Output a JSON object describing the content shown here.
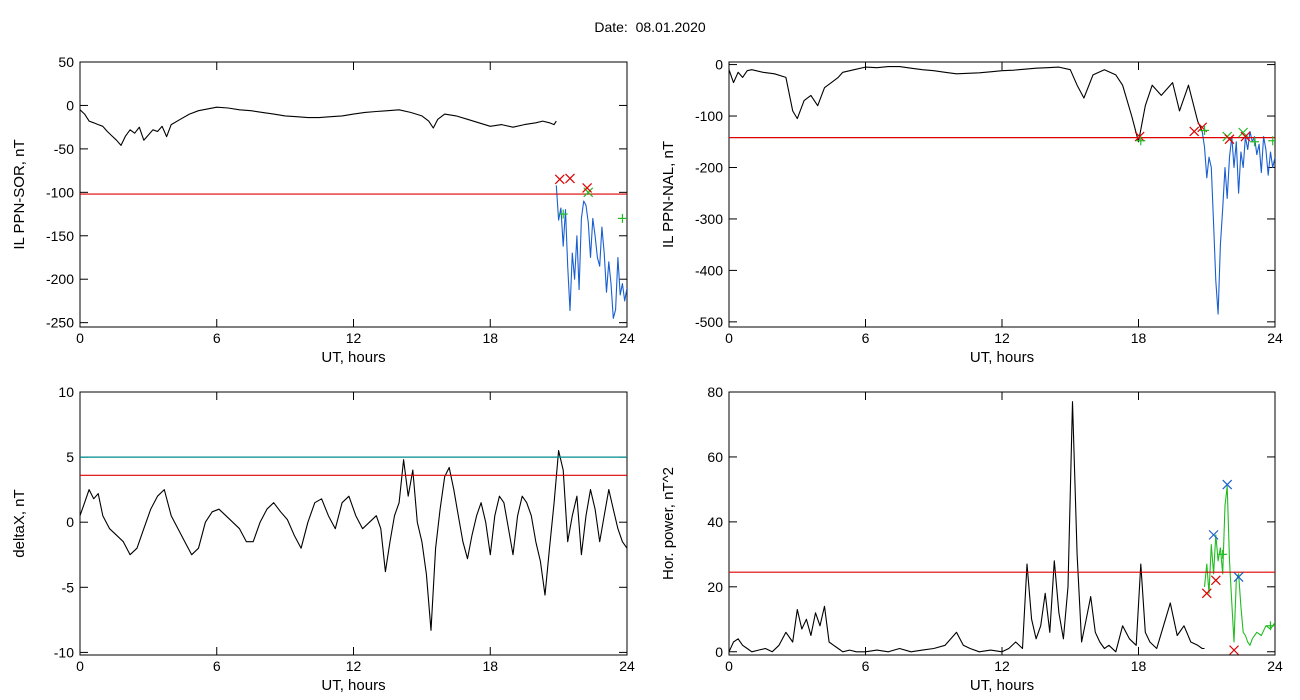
{
  "title_label": "Date:",
  "title_date": "08.01.2020",
  "colors": {
    "data": "#000000",
    "threshold_red": "#dd0000",
    "threshold_teal": "#008b8b",
    "event_blue": "#1a5fd0",
    "marker_red": "#dd0000",
    "marker_green": "#22bb22",
    "marker_blue": "#1a5fd0"
  },
  "chart_data": [
    {
      "type": "line",
      "xlabel": "UT, hours",
      "ylabel": "IL PPN-SOR, nT",
      "xlim": [
        0,
        24
      ],
      "ylim": [
        -255,
        50
      ],
      "xticks": [
        0,
        6,
        12,
        18,
        24
      ],
      "yticks": [
        50,
        0,
        -50,
        -100,
        -150,
        -200,
        -250
      ],
      "thresholds": [
        {
          "value": -102,
          "color": "red"
        }
      ],
      "series": [
        {
          "color": "black",
          "x": [
            0,
            0.2,
            0.4,
            0.6,
            0.8,
            1.0,
            1.2,
            1.4,
            1.6,
            1.8,
            2.0,
            2.2,
            2.4,
            2.6,
            2.8,
            3.0,
            3.2,
            3.4,
            3.6,
            3.8,
            4.0,
            4.4,
            4.8,
            5.2,
            5.6,
            6.0,
            6.5,
            7.0,
            7.5,
            8.0,
            8.5,
            9.0,
            9.5,
            10.0,
            10.5,
            11.0,
            11.5,
            12.0,
            12.5,
            13.0,
            13.5,
            14.0,
            14.5,
            15.0,
            15.3,
            15.5,
            15.7,
            16.0,
            16.5,
            17.0,
            17.5,
            18.0,
            18.5,
            19.0,
            19.5,
            20.0,
            20.3,
            20.6,
            20.8,
            20.9
          ],
          "y": [
            -5,
            -10,
            -18,
            -20,
            -22,
            -24,
            -30,
            -35,
            -40,
            -46,
            -35,
            -28,
            -32,
            -25,
            -40,
            -34,
            -28,
            -30,
            -24,
            -36,
            -22,
            -16,
            -10,
            -6,
            -4,
            -2,
            -3,
            -5,
            -6,
            -8,
            -10,
            -12,
            -13,
            -14,
            -14,
            -13,
            -12,
            -10,
            -8,
            -7,
            -6,
            -5,
            -8,
            -12,
            -18,
            -26,
            -16,
            -10,
            -12,
            -16,
            -20,
            -24,
            -22,
            -25,
            -22,
            -20,
            -18,
            -20,
            -22,
            -18
          ]
        },
        {
          "color": "blue",
          "x": [
            20.9,
            21.0,
            21.1,
            21.2,
            21.3,
            21.4,
            21.5,
            21.6,
            21.7,
            21.8,
            21.9,
            22.0,
            22.1,
            22.2,
            22.3,
            22.4,
            22.5,
            22.6,
            22.7,
            22.8,
            22.9,
            23.0,
            23.1,
            23.2,
            23.3,
            23.4,
            23.5,
            23.6,
            23.7,
            23.8,
            23.9,
            24.0
          ],
          "y": [
            -92,
            -132,
            -118,
            -162,
            -120,
            -185,
            -236,
            -170,
            -200,
            -150,
            -212,
            -130,
            -110,
            -115,
            -135,
            -175,
            -130,
            -150,
            -175,
            -185,
            -140,
            -170,
            -215,
            -180,
            -205,
            -245,
            -235,
            -175,
            -218,
            -205,
            -225,
            -210
          ]
        }
      ],
      "markers": [
        {
          "x": 21.05,
          "y": -85,
          "color": "red",
          "symbol": "x"
        },
        {
          "x": 21.5,
          "y": -84,
          "color": "red",
          "symbol": "x"
        },
        {
          "x": 22.3,
          "y": -100,
          "color": "green",
          "symbol": "x"
        },
        {
          "x": 22.25,
          "y": -95,
          "color": "red",
          "symbol": "x"
        },
        {
          "x": 21.2,
          "y": -125,
          "color": "green",
          "symbol": "+"
        },
        {
          "x": 23.8,
          "y": -130,
          "color": "green",
          "symbol": "+"
        }
      ]
    },
    {
      "type": "line",
      "xlabel": "UT, hours",
      "ylabel": "IL PPN-NAL, nT",
      "xlim": [
        0,
        24
      ],
      "ylim": [
        -510,
        5
      ],
      "xticks": [
        0,
        6,
        12,
        18,
        24
      ],
      "yticks": [
        0,
        -100,
        -200,
        -300,
        -400,
        -500
      ],
      "thresholds": [
        {
          "value": -142,
          "color": "red"
        }
      ],
      "series": [
        {
          "color": "black",
          "x": [
            0,
            0.2,
            0.4,
            0.6,
            0.8,
            1.0,
            1.5,
            2.0,
            2.5,
            2.8,
            3.0,
            3.3,
            3.6,
            3.9,
            4.2,
            4.5,
            4.8,
            5.0,
            5.5,
            6.0,
            6.5,
            7.0,
            7.5,
            8.0,
            8.5,
            9.0,
            9.5,
            10.0,
            10.5,
            11.0,
            11.5,
            12.0,
            12.5,
            13.0,
            13.5,
            14.0,
            14.5,
            15.0,
            15.3,
            15.6,
            16.0,
            16.5,
            17.0,
            17.3,
            17.7,
            18.0,
            18.3,
            18.6,
            19.0,
            19.5,
            19.8,
            20.2,
            20.6,
            20.8
          ],
          "y": [
            -10,
            -35,
            -15,
            -25,
            -12,
            -10,
            -15,
            -18,
            -25,
            -90,
            -105,
            -70,
            -60,
            -80,
            -45,
            -35,
            -25,
            -15,
            -10,
            -5,
            -6,
            -4,
            -4,
            -7,
            -10,
            -12,
            -15,
            -18,
            -17,
            -16,
            -14,
            -12,
            -11,
            -9,
            -7,
            -6,
            -5,
            -10,
            -40,
            -65,
            -20,
            -10,
            -20,
            -40,
            -100,
            -150,
            -80,
            -40,
            -60,
            -35,
            -90,
            -40,
            -110,
            -130
          ]
        },
        {
          "color": "blue",
          "x": [
            20.8,
            20.9,
            21.0,
            21.1,
            21.2,
            21.3,
            21.4,
            21.5,
            21.6,
            21.7,
            21.8,
            21.9,
            22.0,
            22.1,
            22.2,
            22.3,
            22.4,
            22.5,
            22.6,
            22.7,
            22.8,
            22.9,
            23.0,
            23.1,
            23.2,
            23.3,
            23.4,
            23.5,
            23.6,
            23.7,
            23.8,
            23.9,
            24.0
          ],
          "y": [
            -130,
            -160,
            -220,
            -180,
            -200,
            -310,
            -420,
            -485,
            -350,
            -280,
            -200,
            -260,
            -180,
            -140,
            -200,
            -150,
            -250,
            -170,
            -200,
            -140,
            -165,
            -130,
            -150,
            -140,
            -175,
            -155,
            -210,
            -140,
            -165,
            -215,
            -170,
            -200,
            -180
          ]
        }
      ],
      "markers": [
        {
          "x": 18.05,
          "y": -140,
          "color": "red",
          "symbol": "x"
        },
        {
          "x": 18.1,
          "y": -148,
          "color": "green",
          "symbol": "+"
        },
        {
          "x": 20.45,
          "y": -130,
          "color": "red",
          "symbol": "x"
        },
        {
          "x": 20.8,
          "y": -122,
          "color": "red",
          "symbol": "x"
        },
        {
          "x": 20.9,
          "y": -128,
          "color": "green",
          "symbol": "+"
        },
        {
          "x": 21.9,
          "y": -140,
          "color": "green",
          "symbol": "x"
        },
        {
          "x": 22.0,
          "y": -145,
          "color": "red",
          "symbol": "x"
        },
        {
          "x": 22.6,
          "y": -132,
          "color": "green",
          "symbol": "x"
        },
        {
          "x": 22.7,
          "y": -140,
          "color": "red",
          "symbol": "x"
        },
        {
          "x": 23.1,
          "y": -150,
          "color": "green",
          "symbol": "+"
        },
        {
          "x": 23.9,
          "y": -148,
          "color": "green",
          "symbol": "+"
        }
      ]
    },
    {
      "type": "line",
      "xlabel": "UT, hours",
      "ylabel": "deltaX, nT",
      "xlim": [
        0,
        24
      ],
      "ylim": [
        -10.2,
        10
      ],
      "xticks": [
        0,
        6,
        12,
        18,
        24
      ],
      "yticks": [
        10,
        5,
        0,
        -5,
        -10
      ],
      "thresholds": [
        {
          "value": 5.0,
          "color": "teal"
        },
        {
          "value": 3.6,
          "color": "red"
        }
      ],
      "series": [
        {
          "color": "black",
          "x": [
            0,
            0.2,
            0.4,
            0.6,
            0.8,
            1.0,
            1.3,
            1.6,
            1.9,
            2.2,
            2.5,
            2.8,
            3.1,
            3.4,
            3.7,
            4.0,
            4.3,
            4.6,
            4.9,
            5.2,
            5.5,
            5.8,
            6.1,
            6.4,
            6.7,
            7.0,
            7.3,
            7.6,
            7.9,
            8.2,
            8.5,
            8.8,
            9.1,
            9.4,
            9.7,
            10.0,
            10.3,
            10.6,
            10.9,
            11.2,
            11.5,
            11.8,
            12.1,
            12.4,
            12.7,
            13.0,
            13.2,
            13.4,
            13.6,
            13.8,
            14.0,
            14.2,
            14.4,
            14.6,
            14.8,
            15.0,
            15.2,
            15.4,
            15.6,
            15.8,
            16.0,
            16.2,
            16.4,
            16.6,
            16.8,
            17.0,
            17.2,
            17.4,
            17.6,
            17.8,
            18.0,
            18.2,
            18.4,
            18.6,
            18.8,
            19.0,
            19.2,
            19.4,
            19.6,
            19.8,
            20.0,
            20.2,
            20.4,
            20.6,
            20.8,
            21.0,
            21.2,
            21.4,
            21.6,
            21.8,
            22.0,
            22.2,
            22.4,
            22.6,
            22.8,
            23.0,
            23.2,
            23.4,
            23.6,
            23.8,
            24.0
          ],
          "y": [
            0.5,
            1.5,
            2.5,
            1.8,
            2.2,
            0.5,
            -0.5,
            -1.0,
            -1.5,
            -2.5,
            -2.0,
            -0.5,
            1.0,
            2.0,
            2.5,
            0.5,
            -0.5,
            -1.5,
            -2.5,
            -2.0,
            0.0,
            0.8,
            1.0,
            0.5,
            0.0,
            -0.5,
            -1.5,
            -1.5,
            0.0,
            1.0,
            1.5,
            0.8,
            0.2,
            -1.0,
            -2.0,
            0.0,
            1.5,
            1.8,
            0.5,
            -0.5,
            1.5,
            2.0,
            0.5,
            -0.5,
            0.0,
            0.5,
            -0.5,
            -3.8,
            -1.5,
            0.5,
            1.5,
            4.8,
            2.0,
            4.0,
            0.0,
            -1.5,
            -4.0,
            -8.3,
            -2.0,
            1.0,
            3.5,
            4.2,
            2.5,
            0.5,
            -1.5,
            -2.8,
            -1.0,
            0.5,
            1.5,
            0.0,
            -2.5,
            0.5,
            2.0,
            1.5,
            -0.5,
            -2.5,
            0.5,
            2.0,
            1.5,
            0.5,
            -1.5,
            -3.0,
            -5.6,
            -2.0,
            1.5,
            5.5,
            4.0,
            -1.5,
            0.5,
            2.0,
            -2.5,
            0.5,
            2.5,
            1.0,
            -1.5,
            0.5,
            2.5,
            1.0,
            -0.5,
            -1.5,
            -2.0
          ]
        }
      ],
      "markers": []
    },
    {
      "type": "line",
      "xlabel": "UT, hours",
      "ylabel": "Hor. power, nT^2",
      "xlim": [
        0,
        24
      ],
      "ylim": [
        -1,
        80
      ],
      "xticks": [
        0,
        6,
        12,
        18,
        24
      ],
      "yticks": [
        80,
        60,
        40,
        20,
        0
      ],
      "thresholds": [
        {
          "value": 24.5,
          "color": "red"
        }
      ],
      "series": [
        {
          "color": "black",
          "x": [
            0,
            0.2,
            0.4,
            0.6,
            0.8,
            1.0,
            1.3,
            1.6,
            1.9,
            2.2,
            2.5,
            2.8,
            3.0,
            3.2,
            3.4,
            3.6,
            3.8,
            4.0,
            4.2,
            4.4,
            4.6,
            4.8,
            5.0,
            5.3,
            5.6,
            6.0,
            6.5,
            7.0,
            7.5,
            8.0,
            8.5,
            9.0,
            9.5,
            10.0,
            10.3,
            10.6,
            11.0,
            11.5,
            12.0,
            12.3,
            12.6,
            12.9,
            13.1,
            13.3,
            13.5,
            13.7,
            13.9,
            14.1,
            14.3,
            14.5,
            14.7,
            14.9,
            15.1,
            15.3,
            15.5,
            15.7,
            15.9,
            16.1,
            16.3,
            16.5,
            16.7,
            17.0,
            17.3,
            17.6,
            17.9,
            18.1,
            18.3,
            18.5,
            18.8,
            19.1,
            19.4,
            19.7,
            20.0,
            20.3,
            20.6,
            20.8,
            20.9
          ],
          "y": [
            0,
            3,
            4,
            2,
            1,
            0,
            0.5,
            1,
            0,
            2,
            6,
            3,
            13,
            7,
            10,
            5,
            12,
            8,
            14,
            3,
            2,
            1,
            0,
            0.5,
            0,
            0,
            0.5,
            0,
            1,
            0,
            0.5,
            1,
            2,
            6,
            2,
            1,
            0,
            0.5,
            0,
            1,
            3,
            1,
            27,
            10,
            4,
            8,
            18,
            6,
            28,
            12,
            4,
            20,
            77,
            30,
            3,
            10,
            17,
            6,
            3,
            1,
            2,
            0,
            8,
            4,
            2,
            27,
            6,
            3,
            1,
            8,
            15,
            5,
            8,
            3,
            2,
            1,
            1
          ]
        },
        {
          "color": "green",
          "x": [
            20.9,
            21.0,
            21.1,
            21.2,
            21.3,
            21.4,
            21.5,
            21.6,
            21.7,
            21.8,
            21.9,
            22.0,
            22.1,
            22.2,
            22.3,
            22.4,
            22.5,
            22.6,
            22.7,
            22.8,
            22.9,
            23.0,
            23.2,
            23.4,
            23.6,
            23.8,
            24.0
          ],
          "y": [
            20,
            27,
            18,
            33,
            24,
            36,
            28,
            32,
            24,
            45,
            51,
            28,
            15,
            3,
            22,
            24,
            14,
            6,
            5,
            3,
            2,
            4,
            6,
            5,
            8,
            7,
            9
          ]
        }
      ],
      "markers": [
        {
          "x": 21.3,
          "y": 36,
          "color": "blue",
          "symbol": "x"
        },
        {
          "x": 21.9,
          "y": 51.5,
          "color": "blue",
          "symbol": "x"
        },
        {
          "x": 22.4,
          "y": 23,
          "color": "blue",
          "symbol": "x"
        },
        {
          "x": 21.0,
          "y": 18,
          "color": "red",
          "symbol": "x"
        },
        {
          "x": 21.4,
          "y": 22,
          "color": "red",
          "symbol": "x"
        },
        {
          "x": 22.2,
          "y": 0.5,
          "color": "red",
          "symbol": "x"
        },
        {
          "x": 21.7,
          "y": 30,
          "color": "green",
          "symbol": "+"
        },
        {
          "x": 23.8,
          "y": 8,
          "color": "green",
          "symbol": "+"
        }
      ]
    }
  ]
}
